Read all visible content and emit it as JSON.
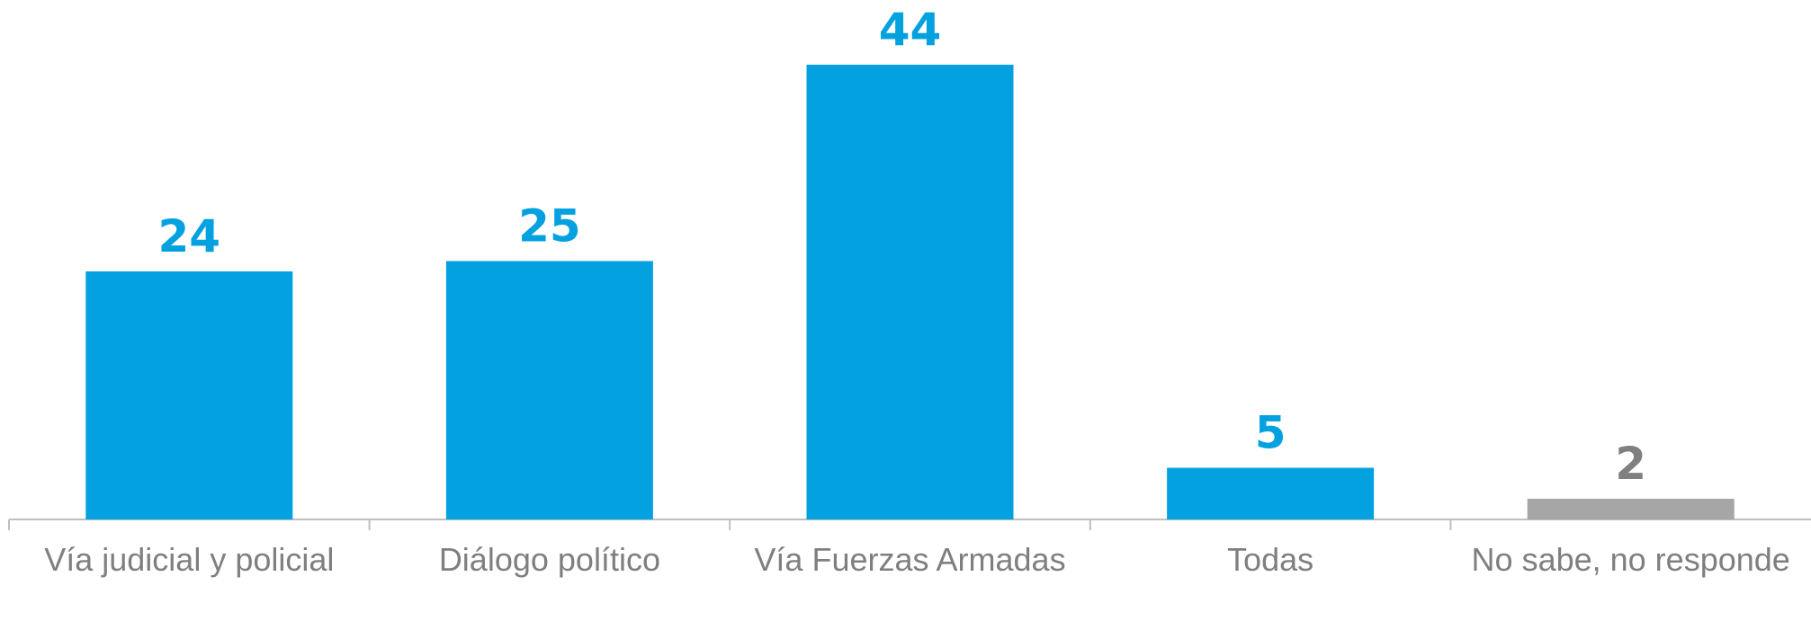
{
  "chart_data": {
    "type": "bar",
    "categories": [
      "Vía judicial y policial",
      "Diálogo político",
      "Vía Fuerzas Armadas",
      "Todas",
      "No sabe, no responde"
    ],
    "values": [
      24,
      25,
      44,
      5,
      2
    ],
    "colors": [
      "#03a1e0",
      "#03a1e0",
      "#03a1e0",
      "#03a1e0",
      "#a6a6a6"
    ],
    "value_label_colors": [
      "#03a1e0",
      "#03a1e0",
      "#03a1e0",
      "#03a1e0",
      "#808080"
    ]
  }
}
